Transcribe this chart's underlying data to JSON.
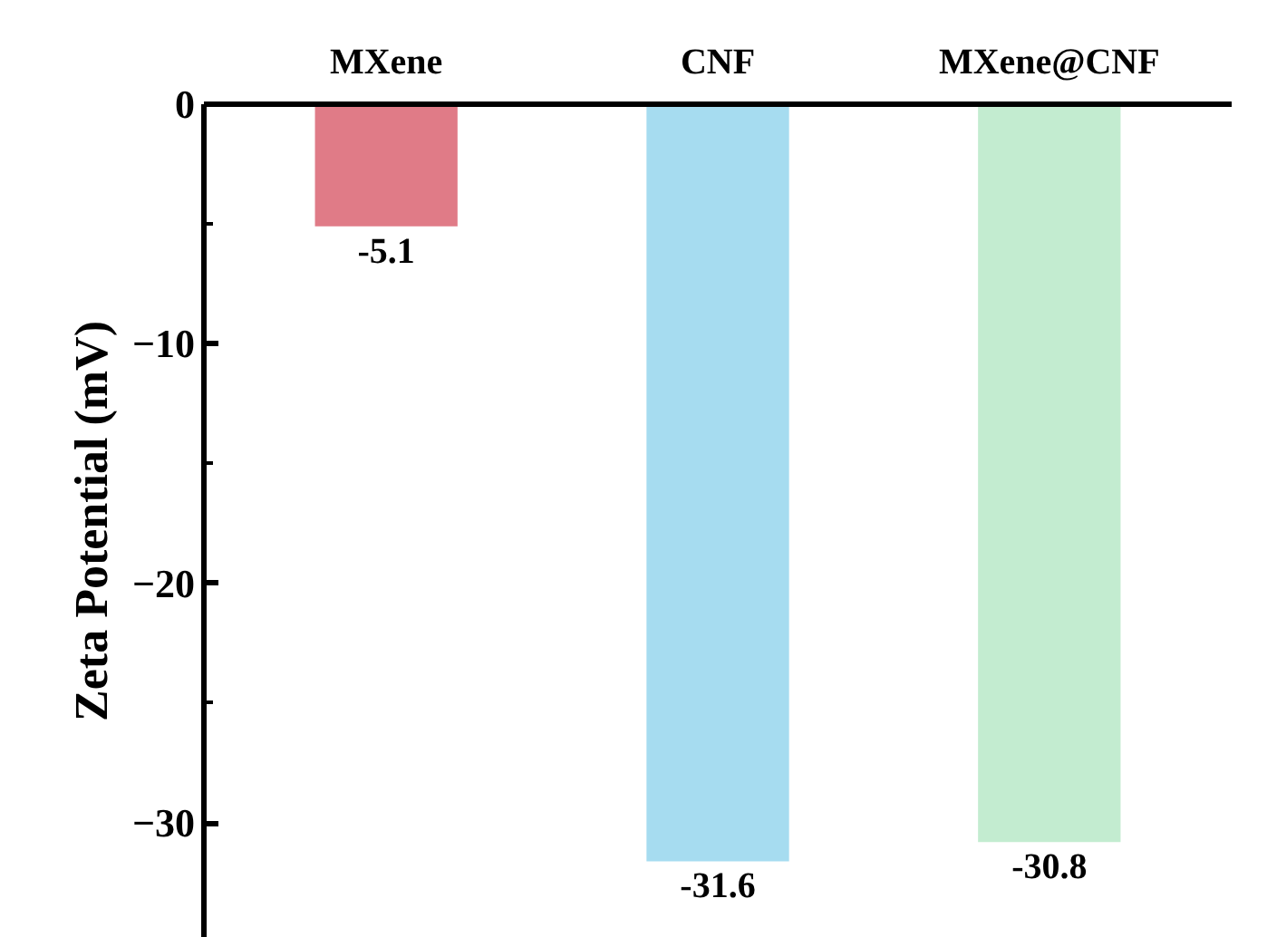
{
  "chart_data": {
    "type": "bar",
    "ylabel": "Zeta Potential (mV)",
    "categories": [
      "MXene",
      "CNF",
      "MXene@CNF"
    ],
    "values": [
      -5.1,
      -31.6,
      -30.8
    ],
    "colors": [
      "#e07b87",
      "#a6dcf0",
      "#c3ecd0"
    ],
    "ylim": [
      -34.8,
      0
    ],
    "yticks": [
      {
        "value": -30,
        "label": "−30"
      },
      {
        "value": -20,
        "label": "−20"
      },
      {
        "value": -10,
        "label": "−10"
      },
      0
    ],
    "data_labels": true
  }
}
